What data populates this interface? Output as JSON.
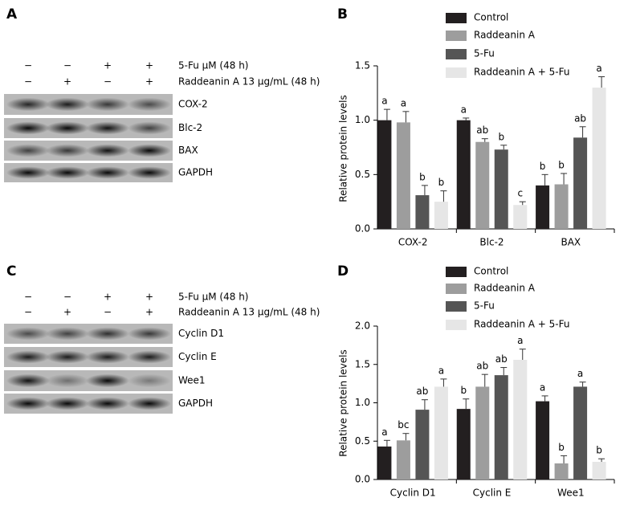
{
  "panel_labels": [
    "A",
    "B",
    "C",
    "D"
  ],
  "blots": [
    {
      "treatments": [
        {
          "label": "5-Fu μM (48 h)",
          "signs": [
            "−",
            "−",
            "+",
            "+"
          ]
        },
        {
          "label": "Raddeanin A 13 μg/mL (48 h)",
          "signs": [
            "−",
            "+",
            "−",
            "+"
          ]
        }
      ],
      "bands": [
        "COX-2",
        "Blc-2",
        "BAX",
        "GAPDH"
      ]
    },
    {
      "treatments": [
        {
          "label": "5-Fu μM (48 h)",
          "signs": [
            "−",
            "−",
            "+",
            "+"
          ]
        },
        {
          "label": "Raddeanin A 13 μg/mL (48 h)",
          "signs": [
            "−",
            "+",
            "−",
            "+"
          ]
        }
      ],
      "bands": [
        "Cyclin D1",
        "Cyclin E",
        "Wee1",
        "GAPDH"
      ]
    }
  ],
  "chart_data": [
    {
      "type": "bar",
      "y_label": "Relative protein levels",
      "categories": [
        "COX-2",
        "Blc-2",
        "BAX"
      ],
      "ylim": [
        0,
        1.5
      ],
      "yticks": [
        {
          "value": 0,
          "label": "0.0"
        },
        {
          "value": 0.5,
          "label": "0.5"
        },
        {
          "value": 1,
          "label": "1.0"
        },
        {
          "value": 1.5,
          "label": "1.5"
        }
      ],
      "series": [
        {
          "name": "Control",
          "color": "#231f20",
          "values": [
            1.0,
            1.0,
            0.4
          ],
          "errors": [
            0.1,
            0.02,
            0.1
          ],
          "letters": [
            "a",
            "a",
            "b"
          ]
        },
        {
          "name": "Raddeanin A",
          "color": "#9d9d9d",
          "values": [
            0.98,
            0.8,
            0.41
          ],
          "errors": [
            0.1,
            0.03,
            0.1
          ],
          "letters": [
            "a",
            "ab",
            "b"
          ]
        },
        {
          "name": "5-Fu",
          "color": "#555555",
          "values": [
            0.31,
            0.73,
            0.84
          ],
          "errors": [
            0.09,
            0.04,
            0.1
          ],
          "letters": [
            "b",
            "b",
            "ab"
          ]
        },
        {
          "name": "Raddeanin A + 5-Fu",
          "color": "#e6e6e6",
          "values": [
            0.25,
            0.22,
            1.3
          ],
          "errors": [
            0.1,
            0.03,
            0.1
          ],
          "letters": [
            "b",
            "c",
            "a"
          ]
        }
      ]
    },
    {
      "type": "bar",
      "y_label": "Relative protein levels",
      "categories": [
        "Cyclin D1",
        "Cyclin E",
        "Wee1"
      ],
      "ylim": [
        0,
        2
      ],
      "yticks": [
        {
          "value": 0,
          "label": "0.0"
        },
        {
          "value": 0.5,
          "label": "0.5"
        },
        {
          "value": 1,
          "label": "1.0"
        },
        {
          "value": 1.5,
          "label": "1.5"
        },
        {
          "value": 2,
          "label": "2.0"
        }
      ],
      "series": [
        {
          "name": "Control",
          "color": "#231f20",
          "values": [
            0.43,
            0.92,
            1.02
          ],
          "errors": [
            0.08,
            0.13,
            0.07
          ],
          "letters": [
            "a",
            "b",
            "a"
          ]
        },
        {
          "name": "Raddeanin A",
          "color": "#9d9d9d",
          "values": [
            0.51,
            1.21,
            0.21
          ],
          "errors": [
            0.09,
            0.16,
            0.1
          ],
          "letters": [
            "bc",
            "ab",
            "b"
          ]
        },
        {
          "name": "5-Fu",
          "color": "#555555",
          "values": [
            0.91,
            1.36,
            1.21
          ],
          "errors": [
            0.13,
            0.1,
            0.06
          ],
          "letters": [
            "ab",
            "ab",
            "a"
          ]
        },
        {
          "name": "Raddeanin A + 5-Fu",
          "color": "#e6e6e6",
          "values": [
            1.21,
            1.56,
            0.23
          ],
          "errors": [
            0.1,
            0.14,
            0.04
          ],
          "letters": [
            "a",
            "a",
            "b"
          ]
        }
      ]
    }
  ]
}
